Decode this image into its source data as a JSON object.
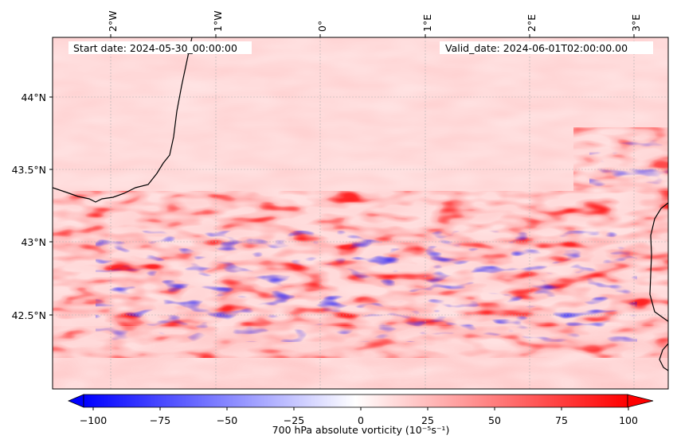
{
  "map": {
    "start_label": "Start date: 2024-05-30_00:00:00",
    "valid_label": "Valid_date: 2024-06-01T02:00:00.00",
    "lon_ticks": [
      "2°W",
      "1°W",
      "0°",
      "1°E",
      "2°E",
      "3°E"
    ],
    "lat_ticks": [
      "44°N",
      "43.5°N",
      "43°N",
      "42.5°N"
    ]
  },
  "colorbar": {
    "label": "700 hPa absolute vorticity (10⁻⁵s⁻¹)",
    "ticks": [
      "−100",
      "−75",
      "−50",
      "−25",
      "0",
      "25",
      "50",
      "75",
      "100"
    ],
    "range": [
      -100,
      100
    ],
    "low_color": "#0000ff",
    "mid_color": "#ffffff",
    "high_color": "#ff0000"
  },
  "colors": {
    "coastline": "#000000",
    "gridline": "#b0b0b0"
  }
}
